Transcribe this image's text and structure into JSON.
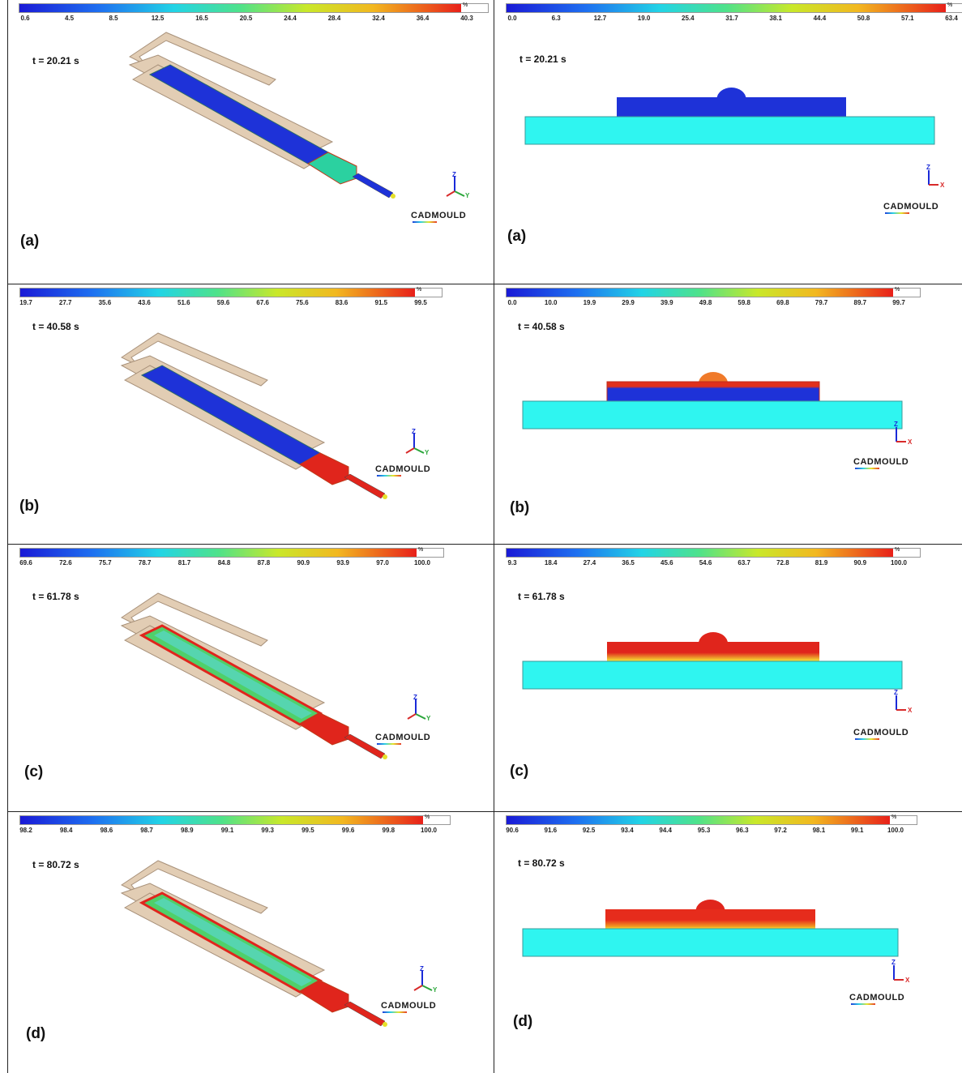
{
  "panels": [
    {
      "left": {
        "legend_ticks": [
          "0.6",
          "4.5",
          "8.5",
          "12.5",
          "16.5",
          "20.5",
          "24.4",
          "28.4",
          "32.4",
          "36.4",
          "40.3"
        ],
        "unit": "%",
        "time": "t = 20.21 s",
        "label": "(a)",
        "axes": {
          "z": "Z",
          "y": "Y"
        },
        "logo": "CADMOULD"
      },
      "right": {
        "legend_ticks": [
          "0.0",
          "6.3",
          "12.7",
          "19.0",
          "25.4",
          "31.7",
          "38.1",
          "44.4",
          "50.8",
          "57.1",
          "63.4"
        ],
        "unit": "%",
        "time": "t = 20.21 s",
        "label": "(a)",
        "axes": {
          "z": "Z",
          "x": "X"
        },
        "logo": "CADMOULD"
      }
    },
    {
      "left": {
        "legend_ticks": [
          "19.7",
          "27.7",
          "35.6",
          "43.6",
          "51.6",
          "59.6",
          "67.6",
          "75.6",
          "83.6",
          "91.5",
          "99.5"
        ],
        "unit": "%",
        "time": "t = 40.58 s",
        "label": "(b)",
        "axes": {
          "z": "Z",
          "y": "Y"
        },
        "logo": "CADMOULD"
      },
      "right": {
        "legend_ticks": [
          "0.0",
          "10.0",
          "19.9",
          "29.9",
          "39.9",
          "49.8",
          "59.8",
          "69.8",
          "79.7",
          "89.7",
          "99.7"
        ],
        "unit": "%",
        "time": "t = 40.58 s",
        "label": "(b)",
        "axes": {
          "z": "Z",
          "x": "X"
        },
        "logo": "CADMOULD"
      }
    },
    {
      "left": {
        "legend_ticks": [
          "69.6",
          "72.6",
          "75.7",
          "78.7",
          "81.7",
          "84.8",
          "87.8",
          "90.9",
          "93.9",
          "97.0",
          "100.0"
        ],
        "unit": "%",
        "time": "t = 61.78 s",
        "label": "(c)",
        "axes": {
          "z": "Z",
          "y": "Y"
        },
        "logo": "CADMOULD"
      },
      "right": {
        "legend_ticks": [
          "9.3",
          "18.4",
          "27.4",
          "36.5",
          "45.6",
          "54.6",
          "63.7",
          "72.8",
          "81.9",
          "90.9",
          "100.0"
        ],
        "unit": "%",
        "time": "t = 61.78 s",
        "label": "(c)",
        "axes": {
          "z": "Z",
          "x": "X"
        },
        "logo": "CADMOULD"
      }
    },
    {
      "left": {
        "legend_ticks": [
          "98.2",
          "98.4",
          "98.6",
          "98.7",
          "98.9",
          "99.1",
          "99.3",
          "99.5",
          "99.6",
          "99.8",
          "100.0"
        ],
        "unit": "%",
        "time": "t = 80.72 s",
        "label": "(d)",
        "axes": {
          "z": "Z",
          "y": "Y"
        },
        "logo": "CADMOULD"
      },
      "right": {
        "legend_ticks": [
          "90.6",
          "91.6",
          "92.5",
          "93.4",
          "94.4",
          "95.3",
          "96.3",
          "97.2",
          "98.1",
          "99.1",
          "100.0"
        ],
        "unit": "%",
        "time": "t = 80.72 s",
        "label": "(d)",
        "axes": {
          "z": "Z",
          "x": "X"
        },
        "logo": "CADMOULD"
      }
    }
  ],
  "colors": {
    "frame": "#e2cdb4",
    "frame_edge": "#a8917a",
    "blue": "#1e32d8",
    "cyan": "#2ff5f0",
    "red": "#e0251c",
    "green": "#4fd06a",
    "yellow": "#e6e02a"
  }
}
